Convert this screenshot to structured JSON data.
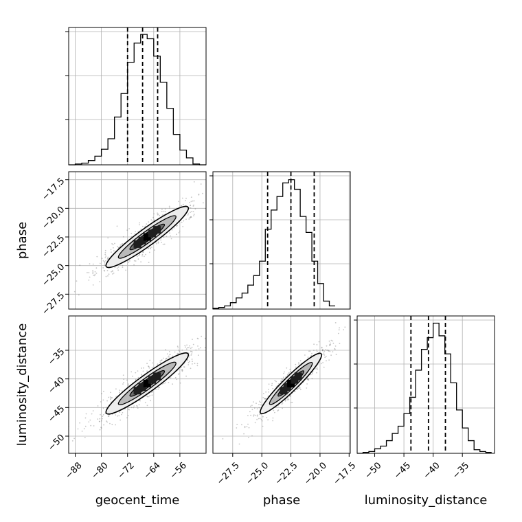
{
  "chart_data": {
    "type": "corner",
    "parameters": [
      "geocent_time",
      "phase",
      "luminosity_distance"
    ],
    "grid": true,
    "quantile_lines": "dashed",
    "panels": [
      {
        "kind": "histogram",
        "row": 0,
        "col": 0,
        "param": "geocent_time",
        "xlim": [
          -90,
          -48
        ],
        "bin_edges": [
          -90,
          -88,
          -86,
          -84,
          -82,
          -80,
          -78,
          -76,
          -74,
          -72,
          -70,
          -68,
          -66,
          -64,
          -62,
          -60,
          -58,
          -56,
          -54,
          -52,
          -50,
          -48
        ],
        "counts": [
          0,
          1,
          2,
          5,
          10,
          18,
          30,
          55,
          82,
          118,
          140,
          150,
          145,
          125,
          95,
          65,
          35,
          17,
          8,
          1,
          0
        ],
        "ylim": [
          0,
          158
        ],
        "quantiles": [
          -72.0,
          -67.4,
          -62.8
        ]
      },
      {
        "kind": "histogram",
        "row": 1,
        "col": 1,
        "param": "phase",
        "xlim": [
          -29.2,
          -17.4
        ],
        "bin_edges": [
          -29.2,
          -28.7,
          -28.2,
          -27.7,
          -27.2,
          -26.7,
          -26.2,
          -25.7,
          -25.2,
          -24.7,
          -24.2,
          -23.7,
          -23.2,
          -22.7,
          -22.2,
          -21.7,
          -21.2,
          -20.7,
          -20.2,
          -19.7,
          -19.2,
          -18.7
        ],
        "counts": [
          1,
          2,
          4,
          8,
          14,
          20,
          30,
          42,
          60,
          100,
          124,
          141,
          158,
          162,
          150,
          116,
          96,
          60,
          32,
          10,
          4
        ],
        "ylim": [
          0,
          172
        ],
        "quantiles": [
          -24.5,
          -22.5,
          -20.5
        ]
      },
      {
        "kind": "histogram",
        "row": 2,
        "col": 2,
        "param": "luminosity_distance",
        "xlim": [
          -53,
          -29.5
        ],
        "bin_edges": [
          -53,
          -52,
          -51,
          -50,
          -49,
          -48,
          -47,
          -46,
          -45,
          -44,
          -43,
          -42,
          -41,
          -40,
          -39,
          -38,
          -37,
          -36,
          -35,
          -34,
          -33,
          -32,
          -31,
          -30
        ],
        "counts": [
          0,
          1,
          2,
          5,
          8,
          14,
          22,
          30,
          44,
          62,
          92,
          115,
          128,
          144,
          130,
          110,
          78,
          48,
          28,
          14,
          4,
          2,
          1
        ],
        "ylim": [
          0,
          152
        ],
        "quantiles": [
          -43.8,
          -40.8,
          -37.9
        ]
      },
      {
        "kind": "contour",
        "row": 1,
        "col": 0,
        "x_param": "geocent_time",
        "y_param": "phase",
        "center": [
          -66,
          -22.5
        ],
        "span": [
          12.5,
          2.6
        ]
      },
      {
        "kind": "contour",
        "row": 2,
        "col": 0,
        "x_param": "geocent_time",
        "y_param": "luminosity_distance",
        "center": [
          -66,
          -40.8
        ],
        "span": [
          12.5,
          5.2
        ]
      },
      {
        "kind": "contour",
        "row": 2,
        "col": 1,
        "x_param": "phase",
        "y_param": "luminosity_distance",
        "center": [
          -22.5,
          -40.8
        ],
        "span": [
          2.6,
          5.2
        ]
      }
    ],
    "axes": {
      "geocent_time": {
        "range": [
          -90,
          -48
        ],
        "ticks": [
          -88,
          -80,
          -72,
          -64,
          -56
        ],
        "tick_labels": [
          "−88",
          "−80",
          "−72",
          "−64",
          "−56"
        ],
        "label": "geocent_time"
      },
      "phase": {
        "range": [
          -29.2,
          -17.4
        ],
        "ticks": [
          -27.5,
          -25.0,
          -22.5,
          -20.0,
          -17.5
        ],
        "tick_labels": [
          "−27.5",
          "−25.0",
          "−22.5",
          "−20.0",
          "−17.5"
        ],
        "label": "phase"
      },
      "luminosity_distance": {
        "range": [
          -53,
          -29.5
        ],
        "ticks": [
          -50,
          -45,
          -40,
          -35
        ],
        "tick_labels": [
          "−50",
          "−45",
          "−40",
          "−35"
        ],
        "label": "luminosity_distance"
      }
    },
    "y_axes": {
      "phase": {
        "range": [
          -28.8,
          -16.8
        ],
        "ticks": [
          -27.5,
          -25.0,
          -22.5,
          -20.0,
          -17.5
        ],
        "tick_labels": [
          "−27.5",
          "−25.0",
          "−22.5",
          "−20.0",
          "−17.5"
        ],
        "label": "phase"
      },
      "luminosity_distance": {
        "range": [
          -53,
          -29
        ],
        "ticks": [
          -50,
          -45,
          -40,
          -35
        ],
        "tick_labels": [
          "−50",
          "−45",
          "−40",
          "−35"
        ],
        "label": "luminosity_distance"
      }
    },
    "colors": {
      "line": "#000000",
      "grid": "#b0b0b0",
      "scatter": "#808080"
    }
  }
}
